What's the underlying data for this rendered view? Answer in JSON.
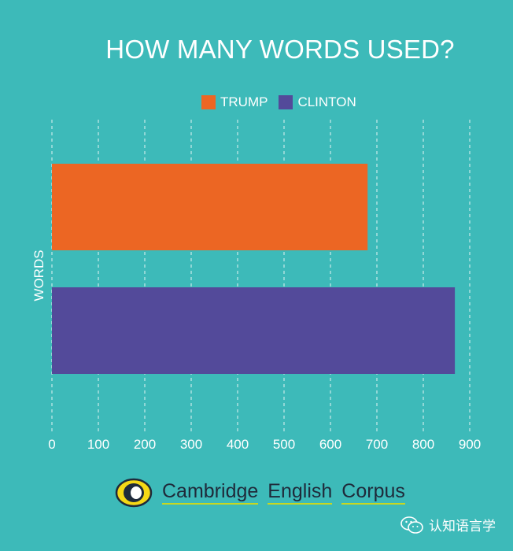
{
  "chart_data": {
    "type": "bar",
    "orientation": "horizontal",
    "title": "HOW MANY WORDS USED?",
    "ylabel": "WORDS",
    "xlabel": "",
    "xlim": [
      0,
      900
    ],
    "x_ticks": [
      0,
      100,
      200,
      300,
      400,
      500,
      600,
      700,
      800,
      900
    ],
    "grid": "vertical-dashed",
    "legend_position": "top",
    "series": [
      {
        "name": "TRUMP",
        "value": 680,
        "color": "#ec6623"
      },
      {
        "name": "CLINTON",
        "value": 868,
        "color": "#534a9a"
      }
    ]
  },
  "footer": {
    "brand_words": [
      "Cambridge",
      "English",
      "Corpus"
    ],
    "logo_icon": "eye-logo-icon"
  },
  "watermark": {
    "icon": "wechat-icon",
    "text": "认知语言学"
  },
  "colors": {
    "background": "#3dbab9",
    "text": "#ffffff",
    "logo_yellow": "#f5d816",
    "logo_dark": "#1f2a3a",
    "underline": "#c8d820"
  }
}
